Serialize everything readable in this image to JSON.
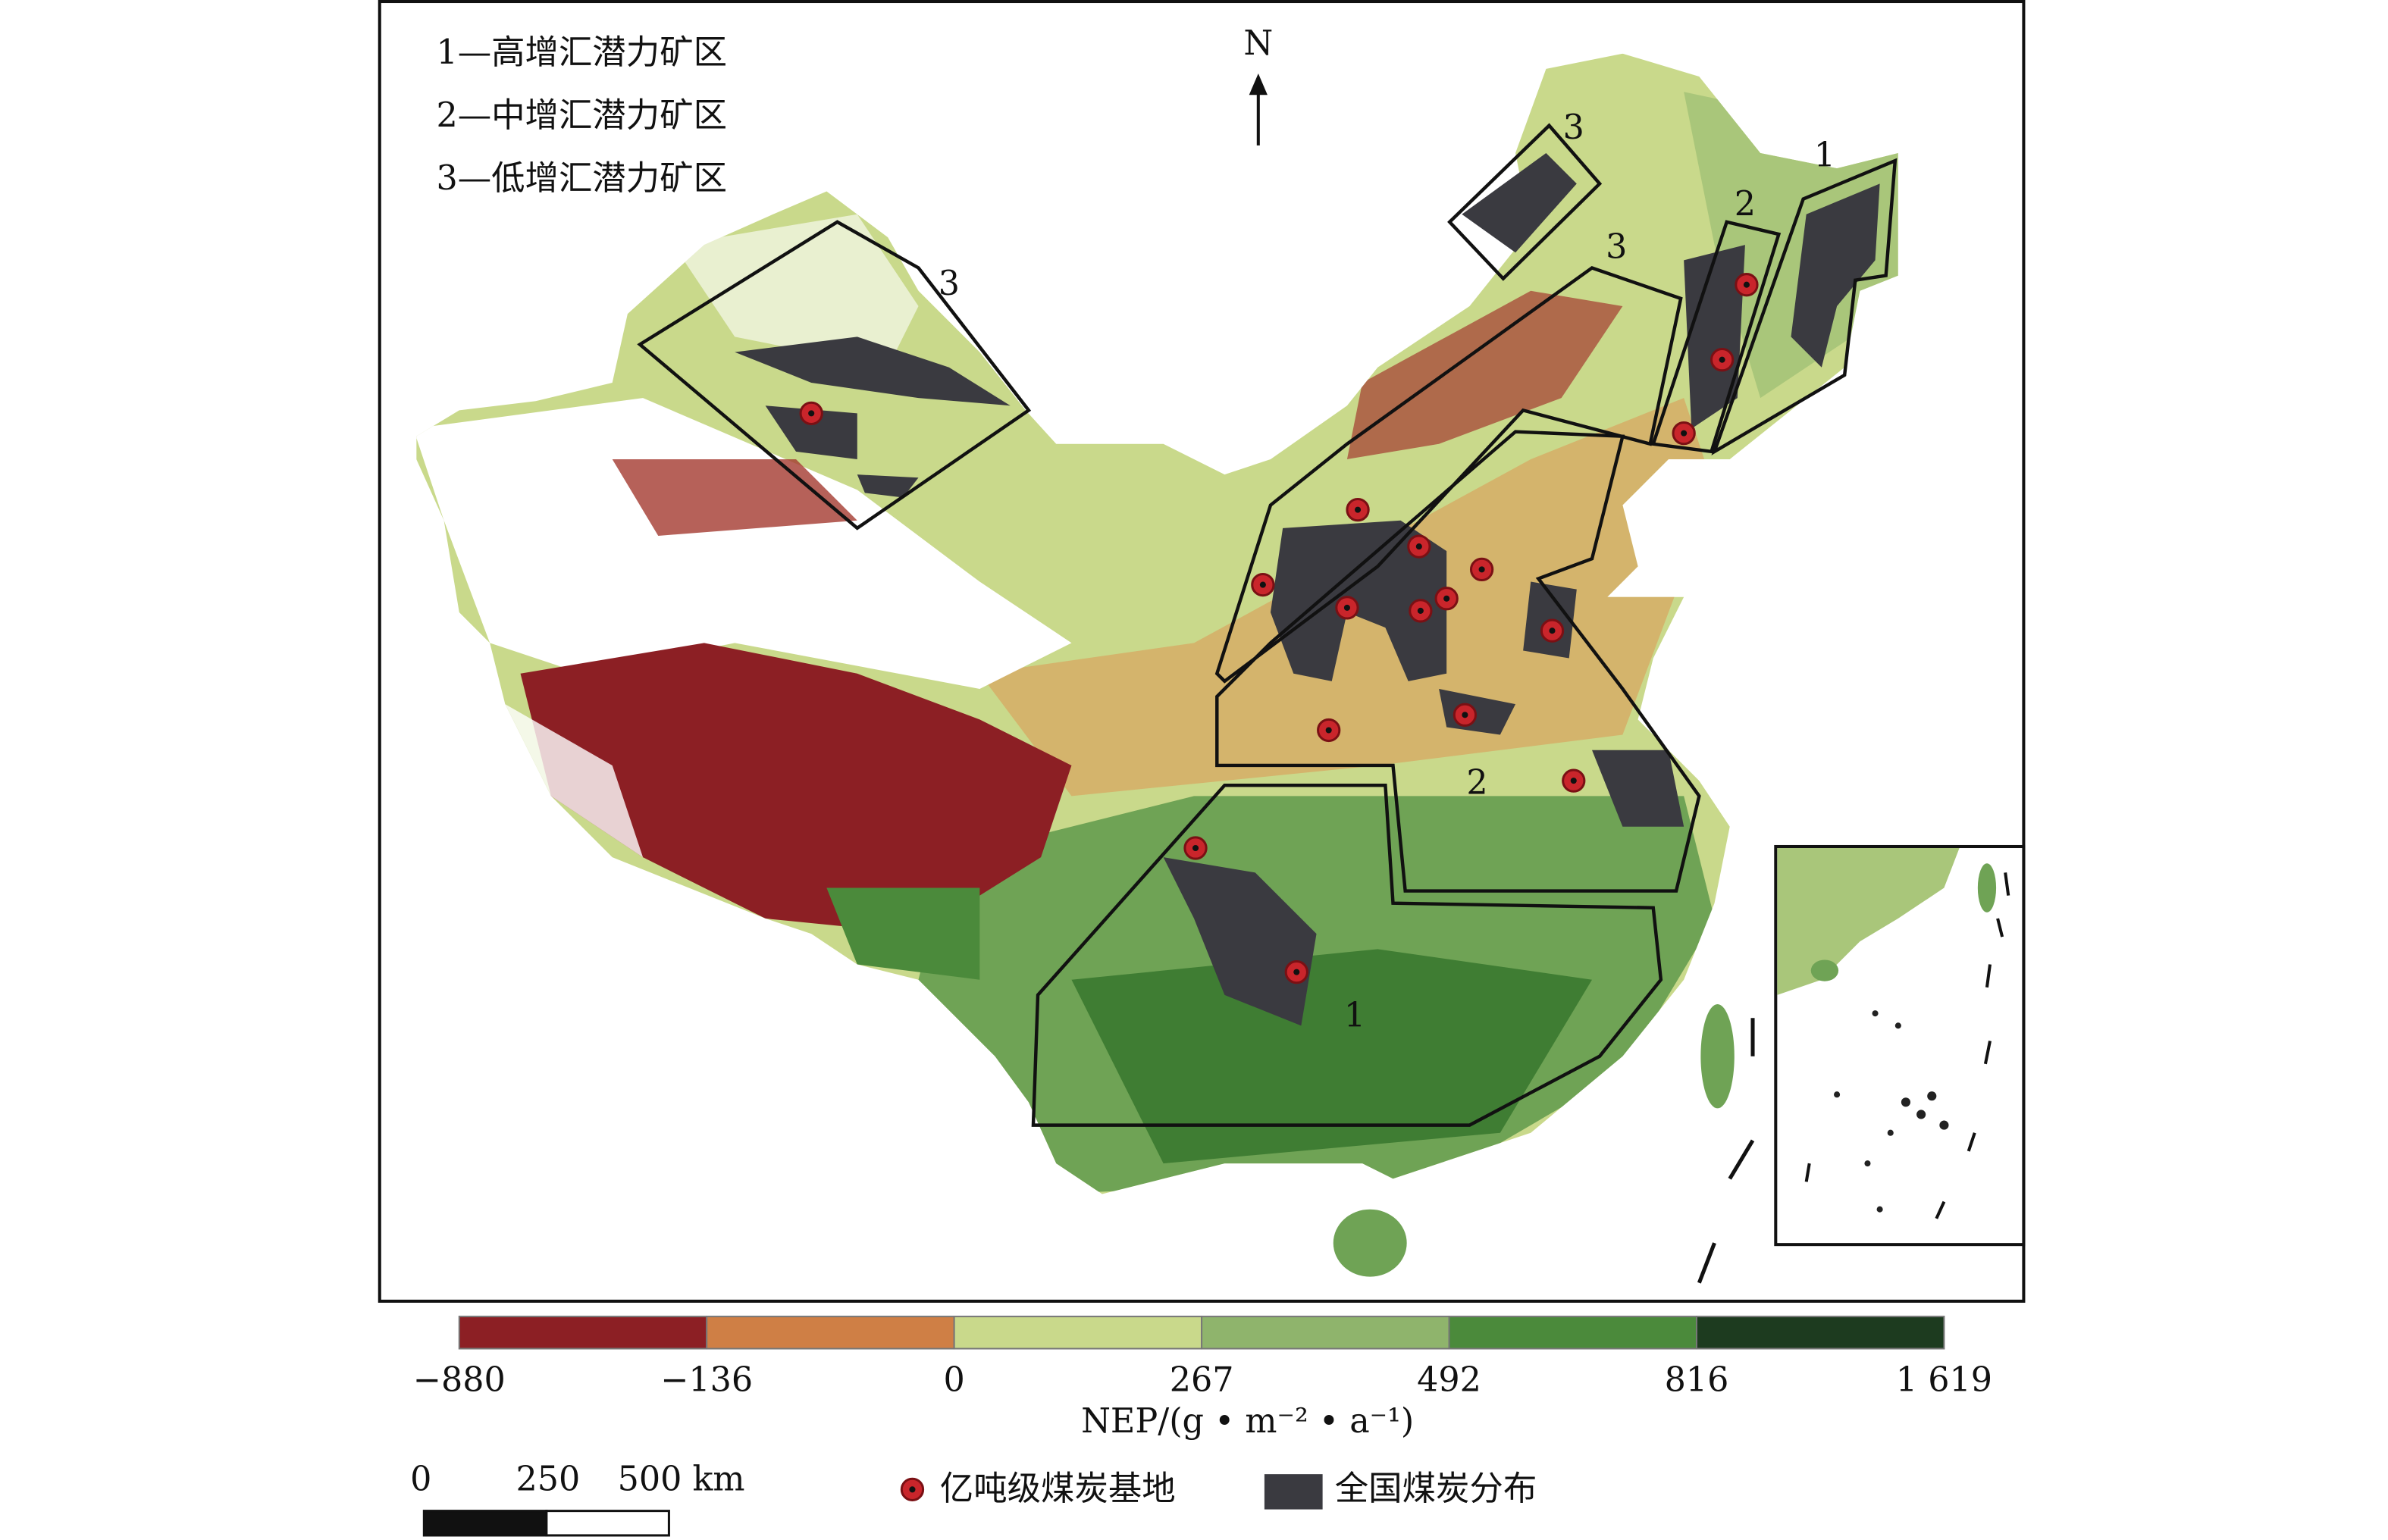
{
  "legend_lines": [
    "1—高增汇潜力矿区",
    "2—中增汇潜力矿区",
    "3—低增汇潜力矿区"
  ],
  "north": "N",
  "zone_labels": [
    "3",
    "3",
    "1",
    "2",
    "3",
    "2",
    "1"
  ],
  "colorbar": {
    "colors": [
      "#8c1f24",
      "#cf7f45",
      "#c9d98b",
      "#8fb46c",
      "#4b8a3b",
      "#1d3b1f"
    ],
    "ticks": [
      "−880",
      "−136",
      "0",
      "267",
      "492",
      "816",
      "1 619"
    ],
    "title": "NEP/(g • m⁻² • a⁻¹)"
  },
  "scale_bar": {
    "labels": [
      "0",
      "250",
      "500 km"
    ]
  },
  "legend": {
    "items": [
      "亿吨级煤炭基地",
      "全国煤炭分布"
    ]
  }
}
